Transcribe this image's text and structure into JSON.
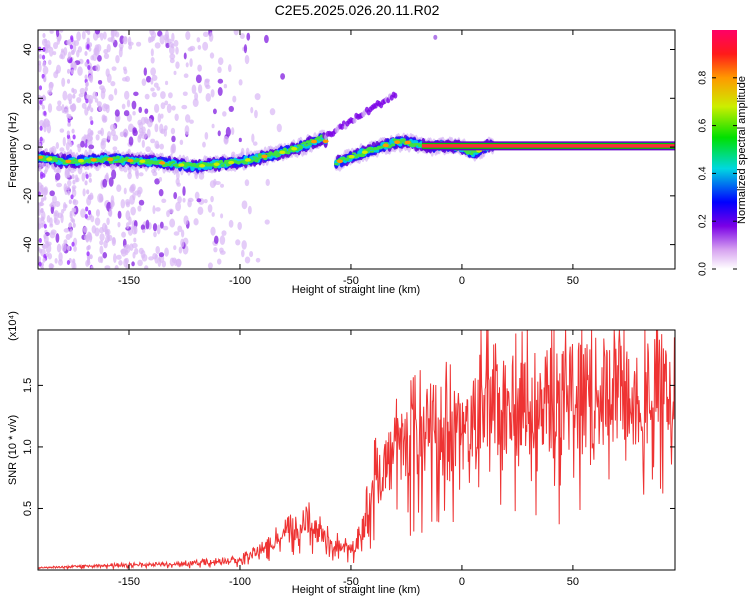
{
  "title": "C2E5.2025.026.20.11.R02",
  "chart_data": [
    {
      "type": "heatmap",
      "xlabel": "Height of straight line (km)",
      "ylabel": "Frequency (Hz)",
      "xlim": [
        -191,
        96
      ],
      "ylim": [
        -50,
        48
      ],
      "xticks": [
        -150,
        -100,
        -50,
        0,
        50
      ],
      "yticks": [
        -40,
        -20,
        0,
        20,
        40
      ],
      "colorbar": {
        "label": "Normalized spectral amplitude",
        "range": [
          0,
          1
        ],
        "ticks": [
          0.0,
          0.2,
          0.4,
          0.6,
          0.8
        ]
      },
      "ridge": {
        "x": [
          -191,
          -180,
          -160,
          -140,
          -120,
          -100,
          -90,
          -80,
          -70,
          -62,
          -58,
          -50,
          -40,
          -30,
          -25,
          -20,
          -15,
          -10,
          -5,
          0,
          3,
          7,
          10,
          14,
          20,
          40,
          60,
          80,
          96
        ],
        "y": [
          -4,
          -6,
          -5,
          -6,
          -8,
          -6,
          -4,
          -2,
          1,
          4,
          -7,
          -4,
          -1,
          2,
          2,
          1,
          0.5,
          0.5,
          0.5,
          0,
          -2,
          -2,
          0,
          0.5,
          0.5,
          0.5,
          0.5,
          0.5,
          0.5
        ]
      }
    },
    {
      "type": "line",
      "xlabel": "Height of straight line (km)",
      "ylabel": "SNR (10 * v/v)",
      "multiplier": "(x10⁴)",
      "xlim": [
        -191,
        96
      ],
      "ylim": [
        0,
        1.95
      ],
      "xticks": [
        -150,
        -100,
        -50,
        0,
        50
      ],
      "yticks": [
        0.5,
        1.0,
        1.5
      ],
      "ytick_labels": [
        "0.5",
        "1.0",
        "1.5"
      ],
      "color": "#ee3333",
      "envelope": {
        "x": [
          -191,
          -170,
          -150,
          -120,
          -100,
          -90,
          -80,
          -70,
          -60,
          -50,
          -45,
          -40,
          -30,
          -20,
          -10,
          0,
          10,
          20,
          30,
          40,
          50,
          60,
          70,
          80,
          96
        ],
        "y": [
          0.02,
          0.04,
          0.05,
          0.07,
          0.1,
          0.22,
          0.35,
          0.5,
          0.3,
          0.2,
          0.35,
          0.9,
          1.2,
          1.4,
          1.5,
          1.4,
          1.55,
          1.65,
          1.7,
          1.75,
          1.78,
          1.8,
          1.8,
          1.82,
          1.83
        ]
      }
    }
  ]
}
